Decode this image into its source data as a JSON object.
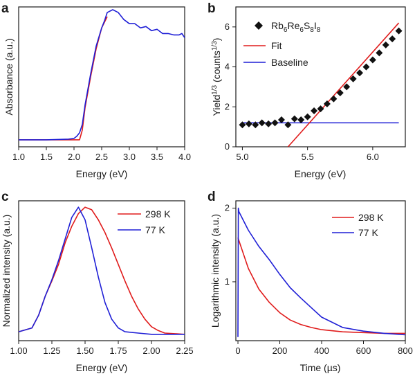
{
  "panels": {
    "a": {
      "letter": "a",
      "chart_data": {
        "type": "line",
        "xlabel": "Energy (eV)",
        "ylabel": "Absorbance (a.u.)",
        "xlim": [
          1.0,
          4.0
        ],
        "ylim": [
          0,
          1
        ],
        "xticks": [
          "1.0",
          "1.5",
          "2.0",
          "2.5",
          "3.0",
          "3.5",
          "4.0"
        ],
        "xtick_values": [
          1.0,
          1.5,
          2.0,
          2.5,
          3.0,
          3.5,
          4.0
        ],
        "yticks": [],
        "series": [
          {
            "name": "Absorbance",
            "color": "#1f1fd6",
            "x": [
              1.0,
              1.5,
              1.9,
              2.0,
              2.05,
              2.1,
              2.15,
              2.2,
              2.3,
              2.4,
              2.5,
              2.55,
              2.6,
              2.7,
              2.8,
              2.9,
              3.0,
              3.1,
              3.2,
              3.3,
              3.4,
              3.5,
              3.6,
              3.7,
              3.8,
              3.9,
              3.95,
              4.0
            ],
            "y": [
              0.05,
              0.05,
              0.055,
              0.06,
              0.075,
              0.1,
              0.16,
              0.3,
              0.52,
              0.72,
              0.85,
              0.9,
              0.96,
              0.98,
              0.96,
              0.91,
              0.88,
              0.88,
              0.85,
              0.86,
              0.83,
              0.84,
              0.81,
              0.81,
              0.8,
              0.8,
              0.81,
              0.78
            ]
          },
          {
            "name": "Fit",
            "color": "#e01b1b",
            "x": [
              1.0,
              2.0,
              2.1,
              2.15,
              2.2,
              2.3,
              2.4,
              2.5,
              2.6
            ],
            "y": [
              0.05,
              0.05,
              0.05,
              0.12,
              0.28,
              0.5,
              0.7,
              0.85,
              0.93
            ]
          }
        ]
      }
    },
    "b": {
      "letter": "b",
      "chart_data": {
        "type": "scatter",
        "xlabel": "Energy (eV)",
        "ylabel_main": "Yield",
        "ylabel_sup1": "1/3",
        "ylabel_mid": " (counts",
        "ylabel_sup2": "1/3",
        "ylabel_end": ")",
        "xlim": [
          4.95,
          6.25
        ],
        "ylim": [
          0,
          7
        ],
        "xticks": [
          "5.0",
          "5.5",
          "6.0"
        ],
        "xtick_values": [
          5.0,
          5.5,
          6.0
        ],
        "yticks": [
          "0",
          "2",
          "4",
          "6"
        ],
        "ytick_values": [
          0,
          2,
          4,
          6
        ],
        "legend": [
          {
            "label_parts": [
              "Rb",
              "6",
              "Re",
              "6",
              "S",
              "8",
              "I",
              "8"
            ],
            "marker": "diamond",
            "color": "#111111"
          },
          {
            "label": "Fit",
            "color": "#e01b1b"
          },
          {
            "label": "Baseline",
            "color": "#1f1fd6"
          }
        ],
        "points": {
          "x": [
            5.0,
            5.05,
            5.1,
            5.15,
            5.2,
            5.25,
            5.3,
            5.35,
            5.4,
            5.45,
            5.5,
            5.55,
            5.6,
            5.65,
            5.7,
            5.75,
            5.8,
            5.85,
            5.9,
            5.95,
            6.0,
            6.05,
            6.1,
            6.15,
            6.2
          ],
          "y": [
            1.1,
            1.15,
            1.1,
            1.2,
            1.15,
            1.2,
            1.35,
            1.1,
            1.4,
            1.35,
            1.5,
            1.8,
            1.9,
            2.15,
            2.4,
            2.7,
            3.0,
            3.4,
            3.7,
            4.0,
            4.35,
            4.7,
            5.1,
            5.4,
            5.8
          ]
        },
        "fit_line": {
          "x": [
            5.35,
            6.2
          ],
          "y": [
            0.0,
            6.2
          ]
        },
        "baseline": {
          "x": [
            5.0,
            6.2
          ],
          "y": [
            1.2,
            1.2
          ]
        }
      }
    },
    "c": {
      "letter": "c",
      "chart_data": {
        "type": "line",
        "xlabel": "Energy (eV)",
        "ylabel": "Normalized intensity (a.u.)",
        "xlim": [
          1.0,
          2.25
        ],
        "ylim": [
          0,
          1
        ],
        "xticks": [
          "1.00",
          "1.25",
          "1.50",
          "1.75",
          "2.00",
          "2.25"
        ],
        "xtick_values": [
          1.0,
          1.25,
          1.5,
          1.75,
          2.0,
          2.25
        ],
        "legend": [
          {
            "label": "298 K",
            "color": "#e01b1b"
          },
          {
            "label": "77 K",
            "color": "#1f1fd6"
          }
        ],
        "series": [
          {
            "name": "298 K",
            "color": "#e01b1b",
            "x": [
              1.0,
              1.1,
              1.15,
              1.2,
              1.25,
              1.3,
              1.35,
              1.4,
              1.45,
              1.5,
              1.55,
              1.6,
              1.65,
              1.7,
              1.75,
              1.8,
              1.85,
              1.9,
              1.95,
              2.0,
              2.05,
              2.1,
              2.25
            ],
            "y": [
              0.02,
              0.05,
              0.15,
              0.3,
              0.42,
              0.55,
              0.72,
              0.85,
              0.95,
              1.0,
              0.98,
              0.9,
              0.8,
              0.68,
              0.55,
              0.42,
              0.3,
              0.2,
              0.12,
              0.06,
              0.03,
              0.01,
              0.0
            ]
          },
          {
            "name": "77 K",
            "color": "#1f1fd6",
            "x": [
              1.0,
              1.1,
              1.15,
              1.2,
              1.25,
              1.3,
              1.35,
              1.4,
              1.45,
              1.5,
              1.55,
              1.6,
              1.65,
              1.7,
              1.75,
              1.8,
              1.9,
              2.0,
              2.25
            ],
            "y": [
              0.02,
              0.05,
              0.15,
              0.3,
              0.43,
              0.58,
              0.75,
              0.92,
              1.0,
              0.9,
              0.68,
              0.45,
              0.25,
              0.12,
              0.05,
              0.02,
              0.01,
              0.0,
              0.0
            ]
          }
        ]
      }
    },
    "d": {
      "letter": "d",
      "chart_data": {
        "type": "line",
        "xlabel": "Time (µs)",
        "ylabel": "Logarithmic intensity (a.u.)",
        "xlim": [
          -10,
          800
        ],
        "ylim": [
          0.2,
          2.1
        ],
        "xticks": [
          "0",
          "200",
          "400",
          "600",
          "800"
        ],
        "xtick_values": [
          0,
          200,
          400,
          600,
          800
        ],
        "yticks": [
          "1",
          "2"
        ],
        "ytick_values": [
          1,
          2
        ],
        "legend": [
          {
            "label": "298 K",
            "color": "#e01b1b"
          },
          {
            "label": "77 K",
            "color": "#1f1fd6"
          }
        ],
        "series": [
          {
            "name": "298 K",
            "color": "#e01b1b",
            "x": [
              0,
              50,
              100,
              150,
              200,
              250,
              300,
              350,
              400,
              500,
              600,
              700,
              800
            ],
            "y": [
              1.6,
              1.18,
              0.9,
              0.72,
              0.58,
              0.48,
              0.42,
              0.38,
              0.35,
              0.32,
              0.31,
              0.3,
              0.3
            ]
          },
          {
            "name": "77 K",
            "color": "#1f1fd6",
            "x": [
              0,
              2,
              5,
              50,
              100,
              150,
              200,
              250,
              300,
              350,
              400,
              450,
              500,
              600,
              700,
              800
            ],
            "y": [
              0.25,
              2.0,
              1.95,
              1.7,
              1.48,
              1.3,
              1.1,
              0.92,
              0.78,
              0.65,
              0.52,
              0.45,
              0.38,
              0.33,
              0.3,
              0.28
            ]
          }
        ]
      }
    }
  }
}
